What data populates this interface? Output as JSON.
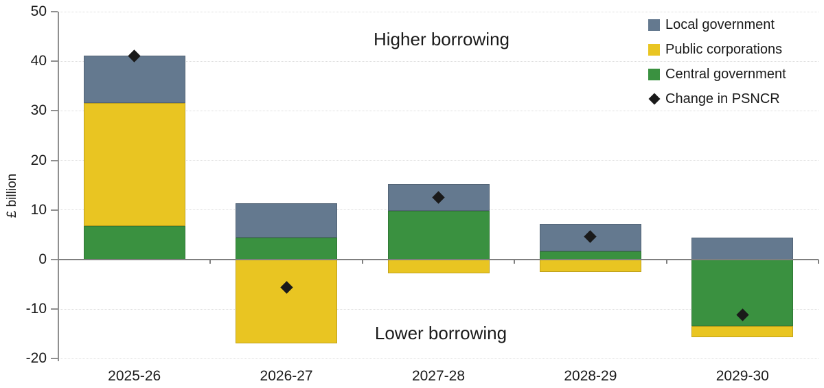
{
  "chart_data": {
    "type": "bar",
    "variant": "stacked-bars-with-diamond-markers",
    "title": "",
    "ylabel": "£ billion",
    "xlabel": "",
    "categories": [
      "2025-26",
      "2026-27",
      "2027-28",
      "2028-29",
      "2029-30"
    ],
    "series": [
      {
        "name": "Local government",
        "type": "bar",
        "color": "#64798f",
        "values": [
          9.5,
          6.8,
          5.4,
          5.5,
          4.4
        ]
      },
      {
        "name": "Public corporations",
        "type": "bar",
        "color": "#e9c522",
        "values": [
          24.8,
          -16.9,
          -2.8,
          -2.5,
          -2.2
        ]
      },
      {
        "name": "Central government",
        "type": "bar",
        "color": "#3a9140",
        "values": [
          6.8,
          4.5,
          9.9,
          1.7,
          -13.4
        ]
      },
      {
        "name": "Change in PSNCR",
        "type": "diamond",
        "color": "#1a1a1a",
        "values": [
          41.1,
          -5.6,
          12.5,
          4.7,
          -11.2
        ]
      }
    ],
    "stack_order": [
      "Central government",
      "Public corporations",
      "Local government"
    ],
    "ylim": [
      -20,
      50
    ],
    "ytick_step": 10,
    "grid": "horizontal-dotted",
    "legend_position": "top-right",
    "annotations": [
      {
        "text": "Higher borrowing",
        "position": "top-center"
      },
      {
        "text": "Lower borrowing",
        "position": "bottom-center"
      }
    ],
    "colors": {
      "axis": "#8f8f8f",
      "zero_line": "#7f7f7f",
      "gridline": "#dcdcdc",
      "text": "#1a1a1a",
      "background": "#ffffff"
    }
  }
}
